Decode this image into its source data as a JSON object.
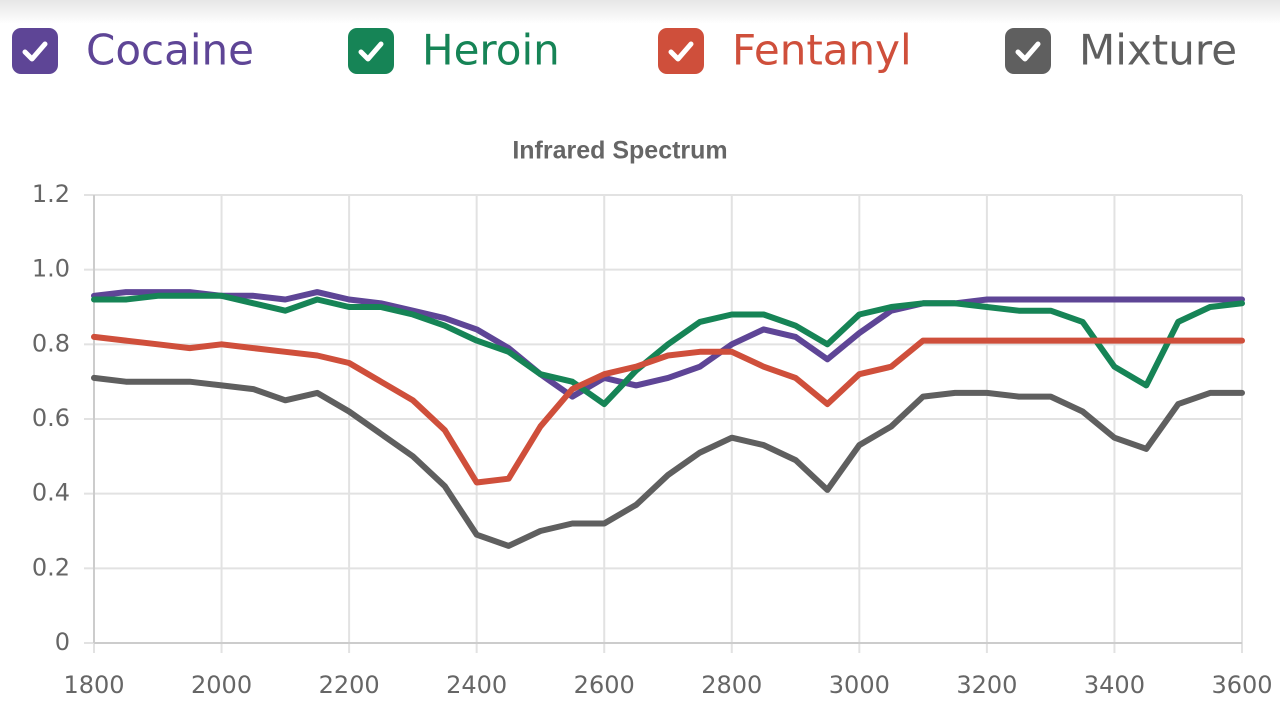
{
  "chart_data": {
    "type": "line",
    "title": "Infrared Spectrum",
    "x": [
      1800,
      1850,
      1900,
      1950,
      2000,
      2050,
      2100,
      2150,
      2200,
      2250,
      2300,
      2350,
      2400,
      2450,
      2500,
      2550,
      2600,
      2650,
      2700,
      2750,
      2800,
      2850,
      2900,
      2950,
      3000,
      3050,
      3100,
      3150,
      3200,
      3250,
      3300,
      3350,
      3400,
      3450,
      3500,
      3550,
      3600
    ],
    "series": [
      {
        "name": "Cocaine",
        "color": "#5e4596",
        "values": [
          0.93,
          0.94,
          0.94,
          0.94,
          0.93,
          0.93,
          0.92,
          0.94,
          0.92,
          0.91,
          0.89,
          0.87,
          0.84,
          0.79,
          0.72,
          0.66,
          0.71,
          0.69,
          0.71,
          0.74,
          0.8,
          0.84,
          0.82,
          0.76,
          0.83,
          0.89,
          0.91,
          0.91,
          0.92,
          0.92,
          0.92,
          0.92,
          0.92,
          0.92,
          0.92,
          0.92,
          0.92
        ]
      },
      {
        "name": "Heroin",
        "color": "#168456",
        "values": [
          0.92,
          0.92,
          0.93,
          0.93,
          0.93,
          0.91,
          0.89,
          0.92,
          0.9,
          0.9,
          0.88,
          0.85,
          0.81,
          0.78,
          0.72,
          0.7,
          0.64,
          0.73,
          0.8,
          0.86,
          0.88,
          0.88,
          0.85,
          0.8,
          0.88,
          0.9,
          0.91,
          0.91,
          0.9,
          0.89,
          0.89,
          0.86,
          0.74,
          0.69,
          0.86,
          0.9,
          0.91
        ]
      },
      {
        "name": "Fentanyl",
        "color": "#cf4f3b",
        "values": [
          0.82,
          0.81,
          0.8,
          0.79,
          0.8,
          0.79,
          0.78,
          0.77,
          0.75,
          0.7,
          0.65,
          0.57,
          0.43,
          0.44,
          0.58,
          0.68,
          0.72,
          0.74,
          0.77,
          0.78,
          0.78,
          0.74,
          0.71,
          0.64,
          0.72,
          0.74,
          0.81,
          0.81,
          0.81,
          0.81,
          0.81,
          0.81,
          0.81,
          0.81,
          0.81,
          0.81,
          0.81
        ]
      },
      {
        "name": "Mixture",
        "color": "#5f5f5f",
        "values": [
          0.71,
          0.7,
          0.7,
          0.7,
          0.69,
          0.68,
          0.65,
          0.67,
          0.62,
          0.56,
          0.5,
          0.42,
          0.29,
          0.26,
          0.3,
          0.32,
          0.32,
          0.37,
          0.45,
          0.51,
          0.55,
          0.53,
          0.49,
          0.41,
          0.53,
          0.58,
          0.66,
          0.67,
          0.67,
          0.66,
          0.66,
          0.62,
          0.55,
          0.52,
          0.64,
          0.67,
          0.67
        ]
      }
    ],
    "xlim": [
      1800,
      3600
    ],
    "xticks": [
      1800,
      2000,
      2200,
      2400,
      2600,
      2800,
      3000,
      3200,
      3400,
      3600
    ],
    "ylim": [
      0,
      1.2
    ],
    "yticks": [
      0,
      0.2,
      0.4,
      0.6,
      {
        "value": 1,
        "label": "1.0"
      },
      0.8,
      1.2
    ],
    "grid": true
  }
}
